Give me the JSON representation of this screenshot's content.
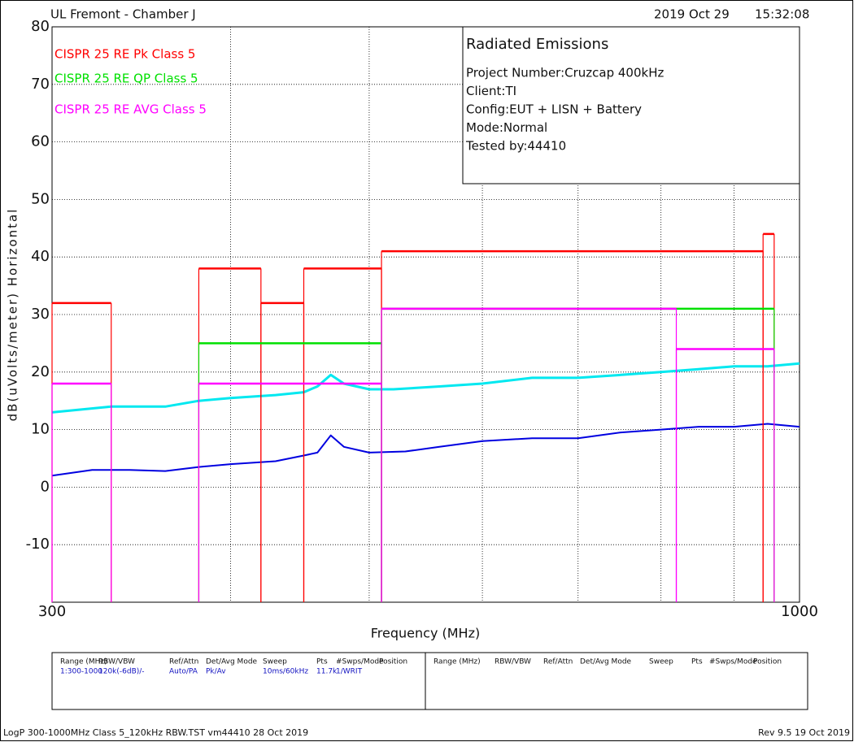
{
  "chart_data": {
    "type": "emissions",
    "header": {
      "site": "UL Fremont - Chamber J",
      "date": "2019 Oct 29",
      "time": "15:32:08"
    },
    "info": {
      "title": "Radiated Emissions",
      "lines": [
        "Project Number:Cruzcap 400kHz",
        "Client:TI",
        "Config:EUT + LISN + Battery",
        "Mode:Normal",
        "Tested by:44410"
      ]
    },
    "xlabel": "Frequency (MHz)",
    "ylabel": "dB(uVolts/meter) Horizontal",
    "xscale": "log",
    "xlim": [
      300,
      1000
    ],
    "xticks": [
      300,
      1000
    ],
    "xgrid": [
      400,
      500,
      600,
      700,
      800,
      900
    ],
    "ylim": [
      -20,
      80
    ],
    "yticks": [
      -10,
      0,
      10,
      20,
      30,
      40,
      50,
      60,
      70,
      80
    ],
    "grid": true,
    "limits": [
      {
        "name": "CISPR 25 RE Pk Class 5",
        "color": "#ff0000",
        "segments": [
          {
            "start": 300,
            "stop": 330,
            "level": 32
          },
          {
            "start": 380,
            "stop": 420,
            "level": 38
          },
          {
            "start": 420,
            "stop": 450,
            "level": 32
          },
          {
            "start": 450,
            "stop": 510,
            "level": 38
          },
          {
            "start": 510,
            "stop": 943,
            "level": 41
          },
          {
            "start": 943,
            "stop": 960,
            "level": 44
          }
        ]
      },
      {
        "name": "CISPR 25 RE QP Class 5",
        "color": "#00e000",
        "segments": [
          {
            "start": 380,
            "stop": 510,
            "level": 25
          },
          {
            "start": 510,
            "stop": 960,
            "level": 31
          }
        ]
      },
      {
        "name": "CISPR 25 RE AVG Class 5",
        "color": "#ff00ff",
        "segments": [
          {
            "start": 300,
            "stop": 330,
            "level": 18
          },
          {
            "start": 380,
            "stop": 510,
            "level": 18
          },
          {
            "start": 510,
            "stop": 820,
            "level": 31
          },
          {
            "start": 820,
            "stop": 960,
            "level": 24
          }
        ]
      }
    ],
    "traces": [
      {
        "color": "#00e8f0",
        "x": [
          300,
          330,
          360,
          380,
          400,
          430,
          450,
          460,
          470,
          480,
          500,
          520,
          560,
          600,
          650,
          700,
          750,
          800,
          850,
          900,
          950,
          1000
        ],
        "values": [
          13,
          14,
          14,
          15,
          15.5,
          16,
          16.5,
          17.5,
          19.5,
          18,
          17,
          17,
          17.5,
          18,
          19,
          19,
          19.5,
          20,
          20.5,
          21,
          21,
          21.5
        ]
      },
      {
        "color": "#0000e0",
        "x": [
          300,
          320,
          340,
          360,
          380,
          400,
          430,
          450,
          460,
          470,
          480,
          500,
          530,
          560,
          600,
          650,
          700,
          750,
          800,
          850,
          900,
          950,
          1000
        ],
        "values": [
          2,
          3,
          3,
          2.8,
          3.5,
          4,
          4.5,
          5.5,
          6,
          9,
          7,
          6,
          6.2,
          7,
          8,
          8.5,
          8.5,
          9.5,
          10,
          10.5,
          10.5,
          11,
          10.5
        ]
      }
    ],
    "table": {
      "headers": [
        "Range (MHz)",
        "RBW/VBW",
        "Ref/Attn",
        "Det/Avg Mode",
        "Sweep",
        "Pts",
        "#Swps/Mode",
        "Position"
      ],
      "row": [
        "1:300-1000",
        "120k(-6dB)/-",
        "Auto/PA",
        "Pk/Av",
        "10ms/60kHz",
        "11.7k",
        "1/WRIT"
      ]
    },
    "footer": {
      "left": "LogP 300-1000MHz Class 5_120kHz RBW.TST vm44410 28 Oct 2019",
      "right": "Rev 9.5 19 Oct 2019"
    }
  }
}
